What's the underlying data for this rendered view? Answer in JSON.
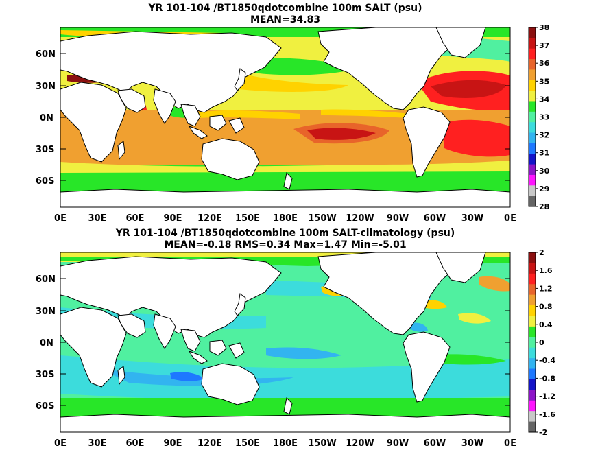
{
  "panels": [
    {
      "title_line1": "YR 101-104 /BT1850qdotcombine 100m SALT (psu)",
      "title_line2": "MEAN=34.83",
      "lat_labels": [
        "60N",
        "30N",
        "0N",
        "30S",
        "60S"
      ],
      "lon_labels": [
        "0E",
        "30E",
        "60E",
        "90E",
        "120E",
        "150E",
        "180E",
        "150W",
        "120W",
        "90W",
        "60W",
        "30W",
        "0E"
      ],
      "colorbar": {
        "labels": [
          "38",
          "37",
          "36",
          "35",
          "34",
          "33",
          "32",
          "31",
          "30",
          "29",
          "28"
        ],
        "colors": [
          "#8b1010",
          "#c81414",
          "#ff2020",
          "#e8642a",
          "#f0a030",
          "#ffd200",
          "#f0f040",
          "#28e628",
          "#50f0a0",
          "#3cdcdc",
          "#32b4f0",
          "#1e78ff",
          "#1414c8",
          "#8c14c8",
          "#ff14ff",
          "#c8c8c8",
          "#646464"
        ]
      }
    },
    {
      "title_line1": "YR 101-104 /BT1850qdotcombine 100m SALT-climatology (psu)",
      "title_line2": "MEAN=-0.18   RMS=0.34   Max=1.47   Min=-5.01",
      "lat_labels": [
        "60N",
        "30N",
        "0N",
        "30S",
        "60S"
      ],
      "lon_labels": [
        "0E",
        "30E",
        "60E",
        "90E",
        "120E",
        "150E",
        "180E",
        "150W",
        "120W",
        "90W",
        "60W",
        "30W",
        "0E"
      ],
      "colorbar": {
        "labels": [
          "2",
          "1.6",
          "1.2",
          "0.8",
          "0.4",
          "0",
          "-0.4",
          "-0.8",
          "-1.2",
          "-1.6",
          "-2"
        ],
        "colors": [
          "#8b1010",
          "#c81414",
          "#ff2020",
          "#e8642a",
          "#f0a030",
          "#ffd200",
          "#f0f040",
          "#28e628",
          "#50f0a0",
          "#3cdcdc",
          "#32b4f0",
          "#1e78ff",
          "#1414c8",
          "#8c14c8",
          "#ff14ff",
          "#c8c8c8",
          "#646464"
        ]
      }
    }
  ]
}
